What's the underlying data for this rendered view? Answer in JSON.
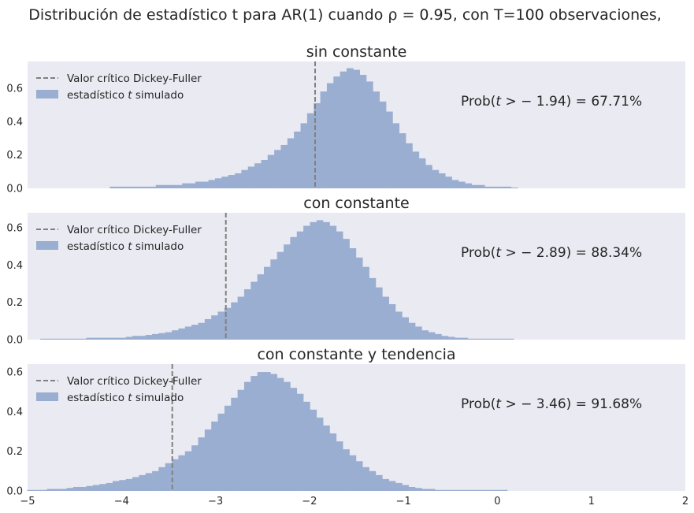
{
  "figure_title": "Distribución de estadístico t para AR(1) cuando ρ = 0.95, con T=100 observaciones,",
  "chart_data": [
    {
      "type": "bar",
      "title": "sin constante",
      "xlim": [
        -5,
        2
      ],
      "ylim": [
        0,
        0.76
      ],
      "yticks": [
        "0.0",
        "0.2",
        "0.4",
        "0.6"
      ],
      "xticks": [],
      "grid": false,
      "legend_position": "top-left",
      "legend": [
        "Valor crítico Dickey-Fuller",
        "estadístico t simulado"
      ],
      "critical_value": -1.94,
      "annotation": "Prob(t > − 1.94) = 67.71%",
      "bin_width": 0.07,
      "x": [
        -4.09,
        -4.02,
        -3.95,
        -3.88,
        -3.81,
        -3.74,
        -3.67,
        -3.6,
        -3.53,
        -3.46,
        -3.39,
        -3.32,
        -3.25,
        -3.18,
        -3.11,
        -3.04,
        -2.97,
        -2.9,
        -2.83,
        -2.76,
        -2.69,
        -2.62,
        -2.55,
        -2.48,
        -2.41,
        -2.34,
        -2.27,
        -2.2,
        -2.13,
        -2.06,
        -1.99,
        -1.92,
        -1.85,
        -1.78,
        -1.71,
        -1.64,
        -1.57,
        -1.5,
        -1.43,
        -1.36,
        -1.29,
        -1.22,
        -1.15,
        -1.08,
        -1.01,
        -0.94,
        -0.87,
        -0.8,
        -0.73,
        -0.66,
        -0.59,
        -0.52,
        -0.45,
        -0.38,
        -0.31,
        -0.24,
        -0.17,
        -0.1,
        -0.03,
        0.04,
        0.11,
        0.18
      ],
      "values": [
        0.01,
        0.01,
        0.01,
        0.01,
        0.01,
        0.01,
        0.01,
        0.02,
        0.02,
        0.02,
        0.02,
        0.03,
        0.03,
        0.04,
        0.04,
        0.05,
        0.06,
        0.07,
        0.08,
        0.09,
        0.11,
        0.13,
        0.15,
        0.17,
        0.2,
        0.23,
        0.26,
        0.3,
        0.34,
        0.39,
        0.45,
        0.51,
        0.58,
        0.63,
        0.67,
        0.7,
        0.72,
        0.71,
        0.68,
        0.64,
        0.58,
        0.52,
        0.46,
        0.39,
        0.33,
        0.27,
        0.22,
        0.18,
        0.14,
        0.11,
        0.09,
        0.07,
        0.05,
        0.04,
        0.03,
        0.02,
        0.02,
        0.01,
        0.01,
        0.01,
        0.01,
        0.005
      ]
    },
    {
      "type": "bar",
      "title": "con constante",
      "xlim": [
        -5,
        2
      ],
      "ylim": [
        0,
        0.68
      ],
      "yticks": [
        "0.0",
        "0.2",
        "0.4",
        "0.6"
      ],
      "xticks": [],
      "grid": false,
      "legend_position": "top-left",
      "legend": [
        "Valor crítico Dickey-Fuller",
        "estadístico t simulado"
      ],
      "critical_value": -2.89,
      "annotation": "Prob(t > − 2.89) = 88.34%",
      "bin_width": 0.07,
      "x": [
        -4.83,
        -4.76,
        -4.69,
        -4.62,
        -4.55,
        -4.48,
        -4.41,
        -4.34,
        -4.27,
        -4.2,
        -4.13,
        -4.06,
        -3.99,
        -3.92,
        -3.85,
        -3.78,
        -3.71,
        -3.64,
        -3.57,
        -3.5,
        -3.43,
        -3.36,
        -3.29,
        -3.22,
        -3.15,
        -3.08,
        -3.01,
        -2.94,
        -2.87,
        -2.8,
        -2.73,
        -2.66,
        -2.59,
        -2.52,
        -2.45,
        -2.38,
        -2.31,
        -2.24,
        -2.17,
        -2.1,
        -2.03,
        -1.96,
        -1.89,
        -1.82,
        -1.75,
        -1.68,
        -1.61,
        -1.54,
        -1.47,
        -1.4,
        -1.33,
        -1.26,
        -1.19,
        -1.12,
        -1.05,
        -0.98,
        -0.91,
        -0.84,
        -0.77,
        -0.7,
        -0.63,
        -0.56,
        -0.49,
        -0.42,
        -0.35,
        -0.28,
        -0.21,
        -0.14,
        -0.07,
        0.0,
        0.07,
        0.14
      ],
      "values": [
        0.005,
        0.005,
        0.005,
        0.005,
        0.005,
        0.005,
        0.005,
        0.01,
        0.01,
        0.01,
        0.01,
        0.01,
        0.01,
        0.015,
        0.02,
        0.02,
        0.025,
        0.03,
        0.035,
        0.04,
        0.05,
        0.06,
        0.07,
        0.08,
        0.09,
        0.11,
        0.13,
        0.15,
        0.17,
        0.2,
        0.23,
        0.27,
        0.31,
        0.35,
        0.39,
        0.43,
        0.47,
        0.51,
        0.55,
        0.58,
        0.61,
        0.63,
        0.64,
        0.63,
        0.61,
        0.58,
        0.54,
        0.49,
        0.44,
        0.39,
        0.33,
        0.28,
        0.23,
        0.19,
        0.15,
        0.12,
        0.09,
        0.07,
        0.05,
        0.04,
        0.03,
        0.02,
        0.015,
        0.01,
        0.01,
        0.005,
        0.005,
        0.005,
        0.005,
        0.005,
        0.005,
        0.005
      ]
    },
    {
      "type": "bar",
      "title": "con constante y tendencia",
      "xlim": [
        -5,
        2
      ],
      "ylim": [
        0,
        0.64
      ],
      "yticks": [
        "0.0",
        "0.2",
        "0.4",
        "0.6"
      ],
      "xticks": [
        "−5",
        "−4",
        "−3",
        "−2",
        "−1",
        "0",
        "1",
        "2"
      ],
      "grid": false,
      "legend_position": "top-left",
      "legend": [
        "Valor crítico Dickey-Fuller",
        "estadístico t simulado"
      ],
      "critical_value": -3.46,
      "annotation": "Prob(t > − 3.46) = 91.68%",
      "bin_width": 0.07,
      "x": [
        -4.97,
        -4.9,
        -4.83,
        -4.76,
        -4.69,
        -4.62,
        -4.55,
        -4.48,
        -4.41,
        -4.34,
        -4.27,
        -4.2,
        -4.13,
        -4.06,
        -3.99,
        -3.92,
        -3.85,
        -3.78,
        -3.71,
        -3.64,
        -3.57,
        -3.5,
        -3.43,
        -3.36,
        -3.29,
        -3.22,
        -3.15,
        -3.08,
        -3.01,
        -2.94,
        -2.87,
        -2.8,
        -2.73,
        -2.66,
        -2.59,
        -2.52,
        -2.45,
        -2.38,
        -2.31,
        -2.24,
        -2.17,
        -2.1,
        -2.03,
        -1.96,
        -1.89,
        -1.82,
        -1.75,
        -1.68,
        -1.61,
        -1.54,
        -1.47,
        -1.4,
        -1.33,
        -1.26,
        -1.19,
        -1.12,
        -1.05,
        -0.98,
        -0.91,
        -0.84,
        -0.77,
        -0.7,
        -0.63,
        -0.56,
        -0.49,
        -0.42,
        -0.35,
        -0.28,
        -0.21,
        -0.14,
        -0.07,
        0.0,
        0.07
      ],
      "values": [
        0.005,
        0.005,
        0.005,
        0.01,
        0.01,
        0.01,
        0.015,
        0.02,
        0.02,
        0.025,
        0.03,
        0.035,
        0.04,
        0.05,
        0.055,
        0.06,
        0.07,
        0.08,
        0.09,
        0.1,
        0.12,
        0.14,
        0.16,
        0.18,
        0.2,
        0.23,
        0.27,
        0.31,
        0.35,
        0.39,
        0.43,
        0.47,
        0.51,
        0.55,
        0.58,
        0.6,
        0.6,
        0.59,
        0.57,
        0.55,
        0.52,
        0.49,
        0.45,
        0.41,
        0.37,
        0.33,
        0.29,
        0.25,
        0.21,
        0.18,
        0.15,
        0.12,
        0.1,
        0.08,
        0.06,
        0.05,
        0.04,
        0.03,
        0.02,
        0.015,
        0.01,
        0.01,
        0.005,
        0.005,
        0.005,
        0.005,
        0.005,
        0.005,
        0.005,
        0.005,
        0.005,
        0.005,
        0.005
      ]
    }
  ],
  "colors": {
    "axes_bg": "#eaeaf2",
    "bar": "#9aaed1",
    "critical_line": "#808080",
    "text": "#262626"
  }
}
